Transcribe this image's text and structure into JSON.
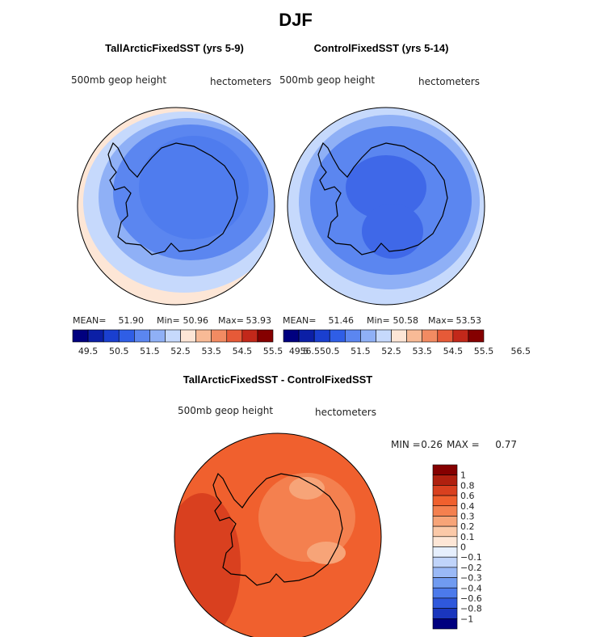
{
  "title": "DJF",
  "panels": [
    {
      "title": "TallArcticFixedSST (yrs 5-9)",
      "field": "500mb geop height",
      "units": "hectometers",
      "stats": {
        "mean_label": "MEAN=",
        "mean": "51.90",
        "min_label": "Min=",
        "min": "50.96",
        "max_label": "Max=",
        "max": "53.93"
      }
    },
    {
      "title": "ControlFixedSST (yrs 5-14)",
      "field": "500mb geop height",
      "units": "hectometers",
      "stats": {
        "mean_label": "MEAN=",
        "mean": "51.46",
        "min_label": "Min=",
        "min": "50.58",
        "max_label": "Max=",
        "max": "53.53"
      }
    }
  ],
  "colorbar": {
    "colors": [
      "#00007f",
      "#0b1fa6",
      "#1a3fcf",
      "#2f5ee6",
      "#5b86f0",
      "#8fb0f6",
      "#c6d9fc",
      "#fde6d6",
      "#f8ba96",
      "#f28b62",
      "#e65a38",
      "#c2281a",
      "#850000"
    ],
    "labels": [
      "49.5",
      "50.5",
      "51.5",
      "52.5",
      "53.5",
      "54.5",
      "55.5",
      "56.5"
    ]
  },
  "difference": {
    "title": "TallArcticFixedSST - ControlFixedSST",
    "field": "500mb geop height",
    "units": "hectometers",
    "stats": {
      "min_label": "MIN =",
      "min": "0.26",
      "max_label": "MAX =",
      "max": "0.77"
    },
    "colorbar": {
      "colors": [
        "#850000",
        "#b0200f",
        "#d9401f",
        "#f0602e",
        "#f4804f",
        "#f7a478",
        "#fbc9a8",
        "#fde6d6",
        "#e6effd",
        "#c0d4fa",
        "#9ab9f6",
        "#709bf1",
        "#4c7aeb",
        "#2f58dc",
        "#1a36bd",
        "#00007f"
      ],
      "labels": [
        "1",
        "0.8",
        "0.6",
        "0.4",
        "0.3",
        "0.2",
        "0.1",
        "0",
        "−0.1",
        "−0.2",
        "−0.3",
        "−0.4",
        "−0.6",
        "−0.8",
        "−1"
      ]
    }
  }
}
